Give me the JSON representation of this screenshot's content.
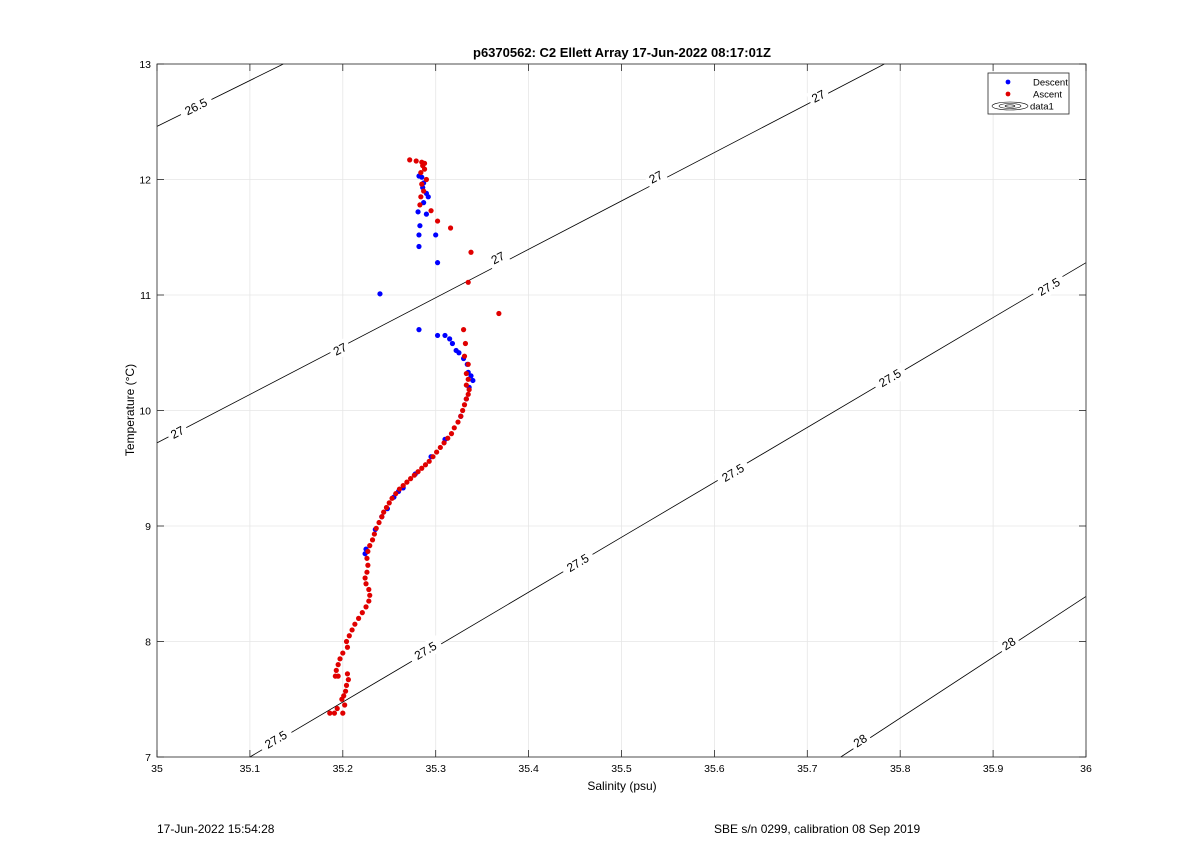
{
  "chart_data": {
    "type": "scatter",
    "title": "p6370562: C2 Ellett Array 17-Jun-2022 08:17:01Z",
    "xlabel": "Salinity (psu)",
    "ylabel": "Temperature (°C)",
    "xlim": [
      35,
      36
    ],
    "ylim": [
      7,
      13
    ],
    "xticks": [
      "35",
      "35.1",
      "35.2",
      "35.3",
      "35.4",
      "35.5",
      "35.6",
      "35.7",
      "35.8",
      "35.9",
      "36"
    ],
    "yticks": [
      "7",
      "8",
      "9",
      "10",
      "11",
      "12",
      "13"
    ],
    "grid": true,
    "legend": {
      "location": "top-right",
      "entries": [
        "Descent",
        "Ascent",
        "data1"
      ]
    },
    "colors": {
      "descent": "#0000ff",
      "ascent": "#e00000"
    },
    "contours": [
      {
        "level": "26.5",
        "x1": 35.0,
        "y1": 12.46,
        "x2": 35.136,
        "y2": 13.0
      },
      {
        "level": "27",
        "x1": 35.0,
        "y1": 9.72,
        "x2": 35.783,
        "y2": 13.0
      },
      {
        "level": "27.5",
        "x1": 35.1,
        "y1": 7.0,
        "x2": 36.0,
        "y2": 11.28
      },
      {
        "level": "28",
        "x1": 35.736,
        "y1": 7.0,
        "x2": 36.0,
        "y2": 8.39
      }
    ],
    "contour_labels": [
      {
        "text": "26.5",
        "x": 35.042,
        "y": 12.63
      },
      {
        "text": "27",
        "x": 35.022,
        "y": 9.81
      },
      {
        "text": "27",
        "x": 35.197,
        "y": 10.53
      },
      {
        "text": "27",
        "x": 35.367,
        "y": 11.32
      },
      {
        "text": "27",
        "x": 35.537,
        "y": 12.02
      },
      {
        "text": "27",
        "x": 35.712,
        "y": 12.72
      },
      {
        "text": "27.5",
        "x": 35.128,
        "y": 7.15
      },
      {
        "text": "27.5",
        "x": 35.289,
        "y": 7.92
      },
      {
        "text": "27.5",
        "x": 35.453,
        "y": 8.68
      },
      {
        "text": "27.5",
        "x": 35.62,
        "y": 9.46
      },
      {
        "text": "27.5",
        "x": 35.789,
        "y": 10.28
      },
      {
        "text": "27.5",
        "x": 35.96,
        "y": 11.07
      },
      {
        "text": "28",
        "x": 35.757,
        "y": 7.14
      },
      {
        "text": "28",
        "x": 35.917,
        "y": 7.98
      }
    ],
    "series": [
      {
        "name": "Descent",
        "points": [
          [
            35.285,
            12.02
          ],
          [
            35.282,
            12.03
          ],
          [
            35.287,
            11.97
          ],
          [
            35.286,
            11.93
          ],
          [
            35.29,
            11.88
          ],
          [
            35.292,
            11.85
          ],
          [
            35.287,
            11.8
          ],
          [
            35.281,
            11.72
          ],
          [
            35.29,
            11.7
          ],
          [
            35.283,
            11.6
          ],
          [
            35.282,
            11.52
          ],
          [
            35.3,
            11.52
          ],
          [
            35.282,
            11.42
          ],
          [
            35.302,
            11.28
          ],
          [
            35.24,
            11.01
          ],
          [
            35.282,
            10.7
          ],
          [
            35.302,
            10.65
          ],
          [
            35.31,
            10.65
          ],
          [
            35.315,
            10.62
          ],
          [
            35.318,
            10.58
          ],
          [
            35.322,
            10.52
          ],
          [
            35.325,
            10.5
          ],
          [
            35.33,
            10.45
          ],
          [
            35.334,
            10.4
          ],
          [
            35.335,
            10.33
          ],
          [
            35.338,
            10.3
          ],
          [
            35.34,
            10.26
          ],
          [
            35.336,
            10.2
          ],
          [
            35.333,
            10.1
          ],
          [
            35.327,
            9.95
          ],
          [
            35.31,
            9.75
          ],
          [
            35.295,
            9.6
          ],
          [
            35.278,
            9.45
          ],
          [
            35.265,
            9.33
          ],
          [
            35.26,
            9.3
          ],
          [
            35.255,
            9.25
          ],
          [
            35.248,
            9.15
          ],
          [
            35.242,
            9.08
          ],
          [
            35.235,
            8.97
          ],
          [
            35.225,
            8.8
          ],
          [
            35.224,
            8.76
          ]
        ]
      },
      {
        "name": "Ascent",
        "points": [
          [
            35.272,
            12.17
          ],
          [
            35.279,
            12.16
          ],
          [
            35.285,
            12.15
          ],
          [
            35.288,
            12.14
          ],
          [
            35.286,
            12.12
          ],
          [
            35.288,
            12.09
          ],
          [
            35.284,
            12.06
          ],
          [
            35.29,
            12.0
          ],
          [
            35.285,
            11.96
          ],
          [
            35.287,
            11.9
          ],
          [
            35.284,
            11.85
          ],
          [
            35.283,
            11.78
          ],
          [
            35.295,
            11.73
          ],
          [
            35.302,
            11.64
          ],
          [
            35.316,
            11.58
          ],
          [
            35.338,
            11.37
          ],
          [
            35.335,
            11.11
          ],
          [
            35.368,
            10.84
          ],
          [
            35.33,
            10.7
          ],
          [
            35.332,
            10.58
          ],
          [
            35.331,
            10.47
          ],
          [
            35.335,
            10.4
          ],
          [
            35.333,
            10.32
          ],
          [
            35.335,
            10.27
          ],
          [
            35.333,
            10.22
          ],
          [
            35.336,
            10.18
          ],
          [
            35.335,
            10.14
          ],
          [
            35.333,
            10.1
          ],
          [
            35.331,
            10.05
          ],
          [
            35.329,
            10.0
          ],
          [
            35.327,
            9.95
          ],
          [
            35.324,
            9.9
          ],
          [
            35.32,
            9.85
          ],
          [
            35.317,
            9.8
          ],
          [
            35.313,
            9.76
          ],
          [
            35.309,
            9.72
          ],
          [
            35.305,
            9.68
          ],
          [
            35.301,
            9.64
          ],
          [
            35.297,
            9.6
          ],
          [
            35.293,
            9.56
          ],
          [
            35.289,
            9.53
          ],
          [
            35.285,
            9.5
          ],
          [
            35.281,
            9.47
          ],
          [
            35.277,
            9.44
          ],
          [
            35.273,
            9.41
          ],
          [
            35.269,
            9.38
          ],
          [
            35.265,
            9.35
          ],
          [
            35.261,
            9.32
          ],
          [
            35.257,
            9.28
          ],
          [
            35.253,
            9.24
          ],
          [
            35.25,
            9.2
          ],
          [
            35.247,
            9.16
          ],
          [
            35.244,
            9.12
          ],
          [
            35.242,
            9.08
          ],
          [
            35.239,
            9.03
          ],
          [
            35.236,
            8.98
          ],
          [
            35.234,
            8.93
          ],
          [
            35.232,
            8.88
          ],
          [
            35.229,
            8.83
          ],
          [
            35.227,
            8.78
          ],
          [
            35.226,
            8.72
          ],
          [
            35.227,
            8.66
          ],
          [
            35.226,
            8.6
          ],
          [
            35.224,
            8.55
          ],
          [
            35.225,
            8.5
          ],
          [
            35.228,
            8.45
          ],
          [
            35.229,
            8.4
          ],
          [
            35.228,
            8.35
          ],
          [
            35.225,
            8.3
          ],
          [
            35.221,
            8.25
          ],
          [
            35.217,
            8.2
          ],
          [
            35.213,
            8.15
          ],
          [
            35.21,
            8.1
          ],
          [
            35.207,
            8.05
          ],
          [
            35.204,
            8.0
          ],
          [
            35.205,
            7.95
          ],
          [
            35.2,
            7.9
          ],
          [
            35.197,
            7.85
          ],
          [
            35.195,
            7.8
          ],
          [
            35.193,
            7.75
          ],
          [
            35.195,
            7.7
          ],
          [
            35.205,
            7.72
          ],
          [
            35.206,
            7.67
          ],
          [
            35.204,
            7.62
          ],
          [
            35.203,
            7.57
          ],
          [
            35.201,
            7.53
          ],
          [
            35.199,
            7.5
          ],
          [
            35.202,
            7.45
          ],
          [
            35.194,
            7.42
          ],
          [
            35.2,
            7.38
          ],
          [
            35.186,
            7.38
          ],
          [
            35.191,
            7.38
          ],
          [
            35.192,
            7.7
          ]
        ]
      }
    ]
  },
  "footer": {
    "left": "17-Jun-2022 15:54:28",
    "right": "SBE s/n 0299, calibration 08 Sep 2019"
  }
}
